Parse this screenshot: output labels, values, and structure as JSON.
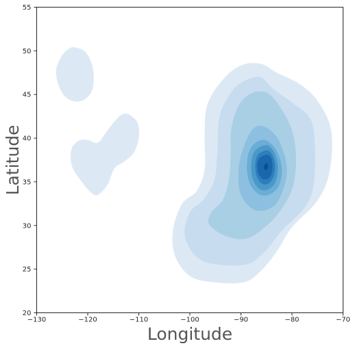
{
  "chart_data": {
    "type": "kde-contour",
    "title": "",
    "xlabel": "Longitude",
    "ylabel": "Latitude",
    "xlim": [
      -130,
      -70
    ],
    "ylim": [
      20,
      55
    ],
    "x_ticks": [
      -130,
      -120,
      -110,
      -100,
      -90,
      -80,
      -70
    ],
    "x_tick_labels": [
      "−130",
      "−120",
      "−110",
      "−100",
      "−90",
      "−80",
      "−70"
    ],
    "y_ticks": [
      20,
      25,
      30,
      35,
      40,
      45,
      50,
      55
    ],
    "y_tick_labels": [
      "20",
      "25",
      "30",
      "35",
      "40",
      "45",
      "50",
      "55"
    ],
    "grid": false,
    "legend": "none",
    "colormap": "Blues",
    "contour_levels": [
      {
        "level": 1,
        "color": "#dce9f5"
      },
      {
        "level": 2,
        "color": "#c8dcef"
      },
      {
        "level": 3,
        "color": "#a9cfe5"
      },
      {
        "level": 4,
        "color": "#8dbfe0"
      },
      {
        "level": 5,
        "color": "#6aadd5"
      },
      {
        "level": 6,
        "color": "#4a98c9"
      },
      {
        "level": 7,
        "color": "#2e7ebc"
      },
      {
        "level": 8,
        "color": "#1a67ad"
      },
      {
        "level": 9,
        "color": "#0a4f95"
      }
    ],
    "regions": [
      {
        "name": "west-north",
        "level": 1,
        "polygon": [
          [
            -122.5,
            50.4
          ],
          [
            -120.5,
            49.9
          ],
          [
            -119.2,
            48.5
          ],
          [
            -118.8,
            46.9
          ],
          [
            -119.2,
            45.4
          ],
          [
            -120.7,
            44.4
          ],
          [
            -122.6,
            44.2
          ],
          [
            -124.5,
            44.8
          ],
          [
            -125.8,
            46.2
          ],
          [
            -126.2,
            47.8
          ],
          [
            -125.2,
            49.3
          ],
          [
            -123.8,
            50.2
          ]
        ]
      },
      {
        "name": "west-south",
        "level": 1,
        "polygon": [
          [
            -111.6,
            42.6
          ],
          [
            -110.2,
            41.7
          ],
          [
            -110.0,
            40.0
          ],
          [
            -111.0,
            38.3
          ],
          [
            -112.9,
            37.3
          ],
          [
            -114.8,
            36.5
          ],
          [
            -116.1,
            34.7
          ],
          [
            -118.0,
            33.5
          ],
          [
            -119.4,
            33.8
          ],
          [
            -121.2,
            35.0
          ],
          [
            -123.1,
            36.8
          ],
          [
            -123.2,
            38.7
          ],
          [
            -121.8,
            39.7
          ],
          [
            -120.0,
            39.8
          ],
          [
            -118.0,
            39.5
          ],
          [
            -116.0,
            41.0
          ],
          [
            -114.0,
            42.4
          ],
          [
            -112.8,
            42.8
          ]
        ]
      },
      {
        "name": "east-level-1",
        "level": 1,
        "polygon": [
          [
            -93.4,
            46.8
          ],
          [
            -89.7,
            48.4
          ],
          [
            -86.0,
            48.5
          ],
          [
            -83.0,
            47.5
          ],
          [
            -78.5,
            46.2
          ],
          [
            -74.9,
            44.2
          ],
          [
            -72.3,
            40.8
          ],
          [
            -72.7,
            36.0
          ],
          [
            -75.2,
            32.7
          ],
          [
            -80.0,
            29.8
          ],
          [
            -83.0,
            27.0
          ],
          [
            -86.1,
            24.8
          ],
          [
            -89.4,
            23.5
          ],
          [
            -95.4,
            23.5
          ],
          [
            -100.0,
            24.2
          ],
          [
            -102.9,
            26.5
          ],
          [
            -103.3,
            29.5
          ],
          [
            -101.5,
            32.5
          ],
          [
            -98.6,
            34.0
          ],
          [
            -97.1,
            36.5
          ],
          [
            -97.1,
            40.0
          ],
          [
            -96.6,
            43.8
          ]
        ]
      },
      {
        "name": "east-level-2",
        "level": 2,
        "polygon": [
          [
            -92.0,
            45.2
          ],
          [
            -89.5,
            46.5
          ],
          [
            -86.2,
            47.0
          ],
          [
            -83.6,
            45.6
          ],
          [
            -79.8,
            44.0
          ],
          [
            -76.4,
            42.2
          ],
          [
            -75.5,
            39.0
          ],
          [
            -75.8,
            34.5
          ],
          [
            -77.6,
            32.0
          ],
          [
            -82.0,
            29.4
          ],
          [
            -85.0,
            27.2
          ],
          [
            -88.6,
            25.6
          ],
          [
            -94.2,
            25.5
          ],
          [
            -98.5,
            26.3
          ],
          [
            -101.0,
            28.8
          ],
          [
            -100.0,
            31.5
          ],
          [
            -97.3,
            33.0
          ],
          [
            -95.2,
            35.2
          ],
          [
            -94.6,
            38.5
          ],
          [
            -94.2,
            42.5
          ]
        ]
      },
      {
        "name": "east-level-3",
        "level": 3,
        "polygon": [
          [
            -90.4,
            43.8
          ],
          [
            -87.7,
            45.2
          ],
          [
            -84.6,
            45.1
          ],
          [
            -81.7,
            43.0
          ],
          [
            -79.8,
            40.5
          ],
          [
            -79.2,
            37.5
          ],
          [
            -79.8,
            34.5
          ],
          [
            -81.8,
            32.1
          ],
          [
            -84.9,
            30.0
          ],
          [
            -88.9,
            28.5
          ],
          [
            -93.0,
            28.8
          ],
          [
            -96.2,
            30.1
          ],
          [
            -95.8,
            31.5
          ],
          [
            -93.5,
            33.0
          ],
          [
            -92.3,
            35.5
          ],
          [
            -92.0,
            38.5
          ],
          [
            -91.9,
            41.0
          ]
        ]
      },
      {
        "name": "east-level-4",
        "level": 4,
        "polygon": [
          [
            -88.0,
            40.8
          ],
          [
            -85.8,
            41.4
          ],
          [
            -83.2,
            40.3
          ],
          [
            -81.7,
            38.5
          ],
          [
            -81.0,
            36.5
          ],
          [
            -81.5,
            34.5
          ],
          [
            -83.1,
            32.5
          ],
          [
            -85.6,
            31.7
          ],
          [
            -88.0,
            32.0
          ],
          [
            -90.0,
            33.5
          ],
          [
            -90.5,
            35.5
          ],
          [
            -90.0,
            38.0
          ]
        ]
      },
      {
        "name": "east-level-5",
        "level": 5,
        "polygon": [
          [
            -87.5,
            39.3
          ],
          [
            -85.4,
            39.8
          ],
          [
            -83.5,
            39.0
          ],
          [
            -82.3,
            37.5
          ],
          [
            -82.0,
            36.0
          ],
          [
            -82.6,
            34.5
          ],
          [
            -84.2,
            33.6
          ],
          [
            -86.2,
            33.5
          ],
          [
            -88.0,
            34.5
          ],
          [
            -88.8,
            36.2
          ],
          [
            -88.6,
            38.0
          ]
        ]
      },
      {
        "name": "east-level-6",
        "level": 6,
        "polygon": [
          [
            -86.8,
            38.8
          ],
          [
            -85.0,
            39.2
          ],
          [
            -83.7,
            38.6
          ],
          [
            -82.9,
            37.3
          ],
          [
            -82.8,
            36.0
          ],
          [
            -83.4,
            34.8
          ],
          [
            -84.8,
            34.1
          ],
          [
            -86.4,
            34.2
          ],
          [
            -87.6,
            35.2
          ],
          [
            -88.0,
            36.6
          ],
          [
            -87.7,
            38.0
          ]
        ]
      },
      {
        "name": "east-level-7",
        "level": 7,
        "polygon": [
          [
            -86.3,
            38.3
          ],
          [
            -84.8,
            38.6
          ],
          [
            -83.8,
            38.0
          ],
          [
            -83.3,
            36.8
          ],
          [
            -83.6,
            35.6
          ],
          [
            -84.6,
            34.8
          ],
          [
            -85.9,
            34.8
          ],
          [
            -86.9,
            35.6
          ],
          [
            -87.2,
            36.8
          ],
          [
            -86.9,
            37.8
          ]
        ]
      },
      {
        "name": "east-level-8",
        "level": 8,
        "polygon": [
          [
            -85.9,
            37.9
          ],
          [
            -84.8,
            38.1
          ],
          [
            -84.0,
            37.6
          ],
          [
            -83.8,
            36.7
          ],
          [
            -84.1,
            35.8
          ],
          [
            -84.9,
            35.3
          ],
          [
            -85.9,
            35.4
          ],
          [
            -86.6,
            36.0
          ],
          [
            -86.8,
            36.9
          ],
          [
            -86.5,
            37.6
          ]
        ]
      },
      {
        "name": "east-level-9",
        "level": 9,
        "polygon": [
          [
            -85.3,
            37.0
          ],
          [
            -84.9,
            37.1
          ],
          [
            -84.7,
            36.8
          ],
          [
            -84.9,
            36.4
          ],
          [
            -85.3,
            36.4
          ],
          [
            -85.5,
            36.7
          ]
        ]
      }
    ]
  }
}
